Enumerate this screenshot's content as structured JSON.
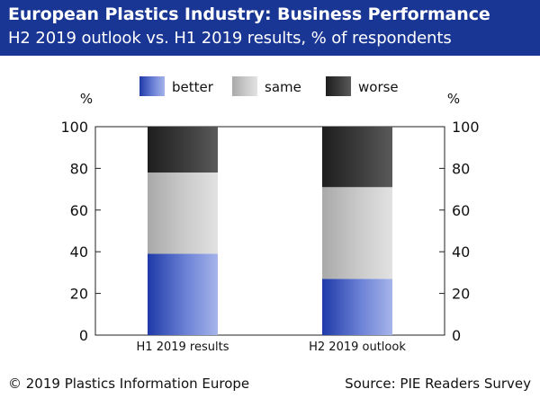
{
  "header": {
    "title": "European Plastics Industry: Business Performance",
    "subtitle": "H2 2019 outlook vs. H1 2019 results, % of respondents"
  },
  "footer": {
    "copyright": "© 2019 Plastics Information Europe",
    "source": "Source: PIE Readers Survey"
  },
  "colors": {
    "header_bg": "#1a3694",
    "better": "#2e4cc0",
    "same": "#c2c2c2",
    "worse": "#3a3a3a"
  },
  "chart_data": {
    "type": "bar",
    "stacked": true,
    "title": "European Plastics Industry: Business Performance",
    "subtitle": "H2 2019 outlook vs. H1 2019 results, % of respondents",
    "categories": [
      "H1 2019 results",
      "H2 2019 outlook"
    ],
    "series": [
      {
        "name": "better",
        "values": [
          39,
          27
        ]
      },
      {
        "name": "same",
        "values": [
          39,
          44
        ]
      },
      {
        "name": "worse",
        "values": [
          22,
          29
        ]
      }
    ],
    "ylim": [
      0,
      100
    ],
    "yticks": [
      0,
      20,
      40,
      60,
      80,
      100
    ],
    "ylabel_left": "%",
    "ylabel_right": "%",
    "grid": false,
    "legend_position": "top"
  }
}
